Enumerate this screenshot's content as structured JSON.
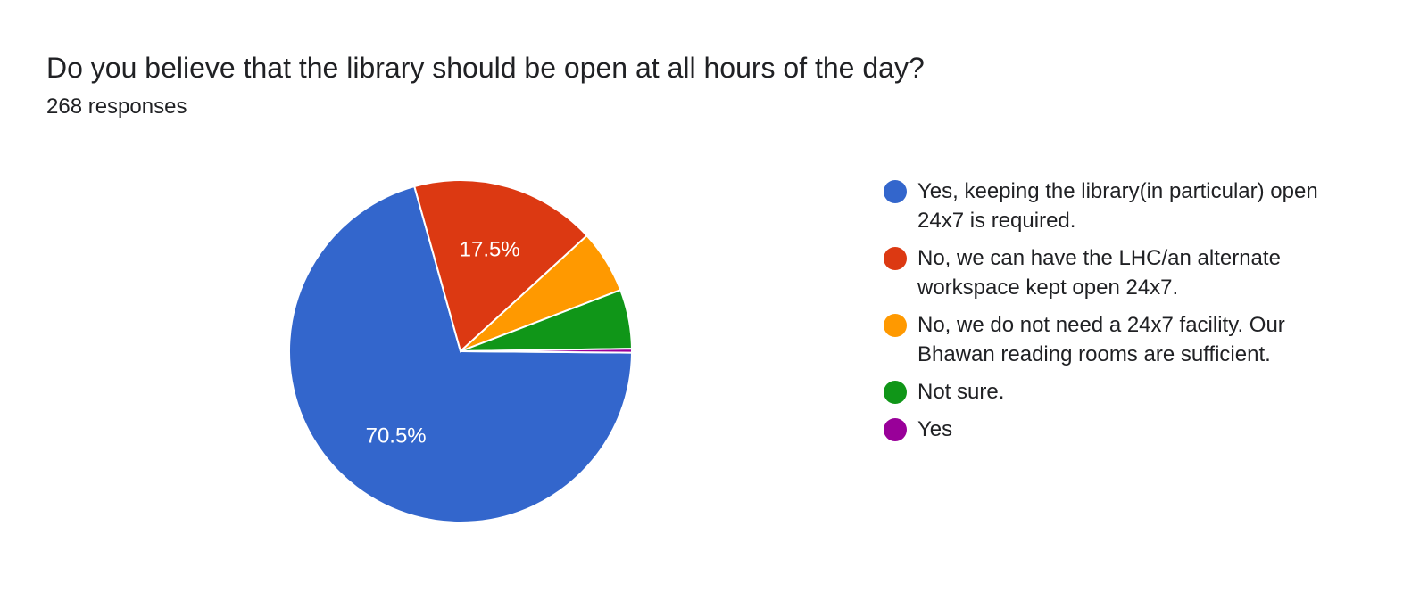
{
  "question": "Do you believe that the library should be open at all hours of the day?",
  "responses": "268 responses",
  "chart_data": {
    "type": "pie",
    "start_angle_deg": 90.5,
    "direction": "clockwise",
    "legend_position": "right",
    "slices": [
      {
        "label": "Yes, keeping the library(in particular) open 24x7 is required.",
        "count": 189,
        "percent": 70.5,
        "data_label": "70.5%",
        "color": "#3366cc"
      },
      {
        "label": "No, we can have the LHC/an alternate workspace kept open 24x7.",
        "count": 47,
        "percent": 17.5,
        "data_label": "17.5%",
        "color": "#dc3912"
      },
      {
        "label": "No, we do not need a 24x7 facility. Our Bhawan reading rooms are sufficient.",
        "count": 16,
        "percent": 6.0,
        "data_label": "",
        "color": "#ff9900"
      },
      {
        "label": "Not sure.",
        "count": 15,
        "percent": 5.6,
        "data_label": "",
        "color": "#109618"
      },
      {
        "label": "Yes",
        "count": 1,
        "percent": 0.4,
        "data_label": "",
        "color": "#990099"
      }
    ]
  }
}
